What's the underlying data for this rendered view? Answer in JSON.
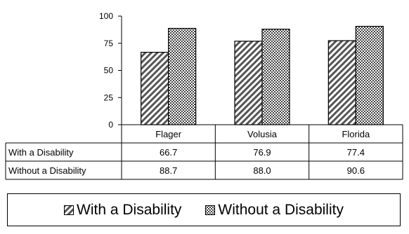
{
  "chart_data": {
    "type": "bar",
    "categories": [
      "Flager",
      "Volusia",
      "Florida"
    ],
    "series": [
      {
        "name": "With a Disability",
        "values": [
          66.7,
          76.9,
          77.4
        ],
        "labels": [
          "66.7",
          "76.9",
          "77.4"
        ],
        "pattern": "diagonal-stripes"
      },
      {
        "name": "Without a Disability",
        "values": [
          88.7,
          88.0,
          90.6
        ],
        "labels": [
          "88.7",
          "88.0",
          "90.6"
        ],
        "pattern": "checkerboard"
      }
    ],
    "ylim": [
      0,
      100
    ],
    "yticks": [
      "0",
      "25",
      "50",
      "75",
      "100"
    ],
    "grid": false,
    "legend": "bottom",
    "data_table": true,
    "colors": {
      "bar_stroke": "#000000",
      "stripe_bg": "#ffffff",
      "stripe": "#555555",
      "checker_dark": "#444444",
      "checker_light": "#ffffff"
    }
  }
}
